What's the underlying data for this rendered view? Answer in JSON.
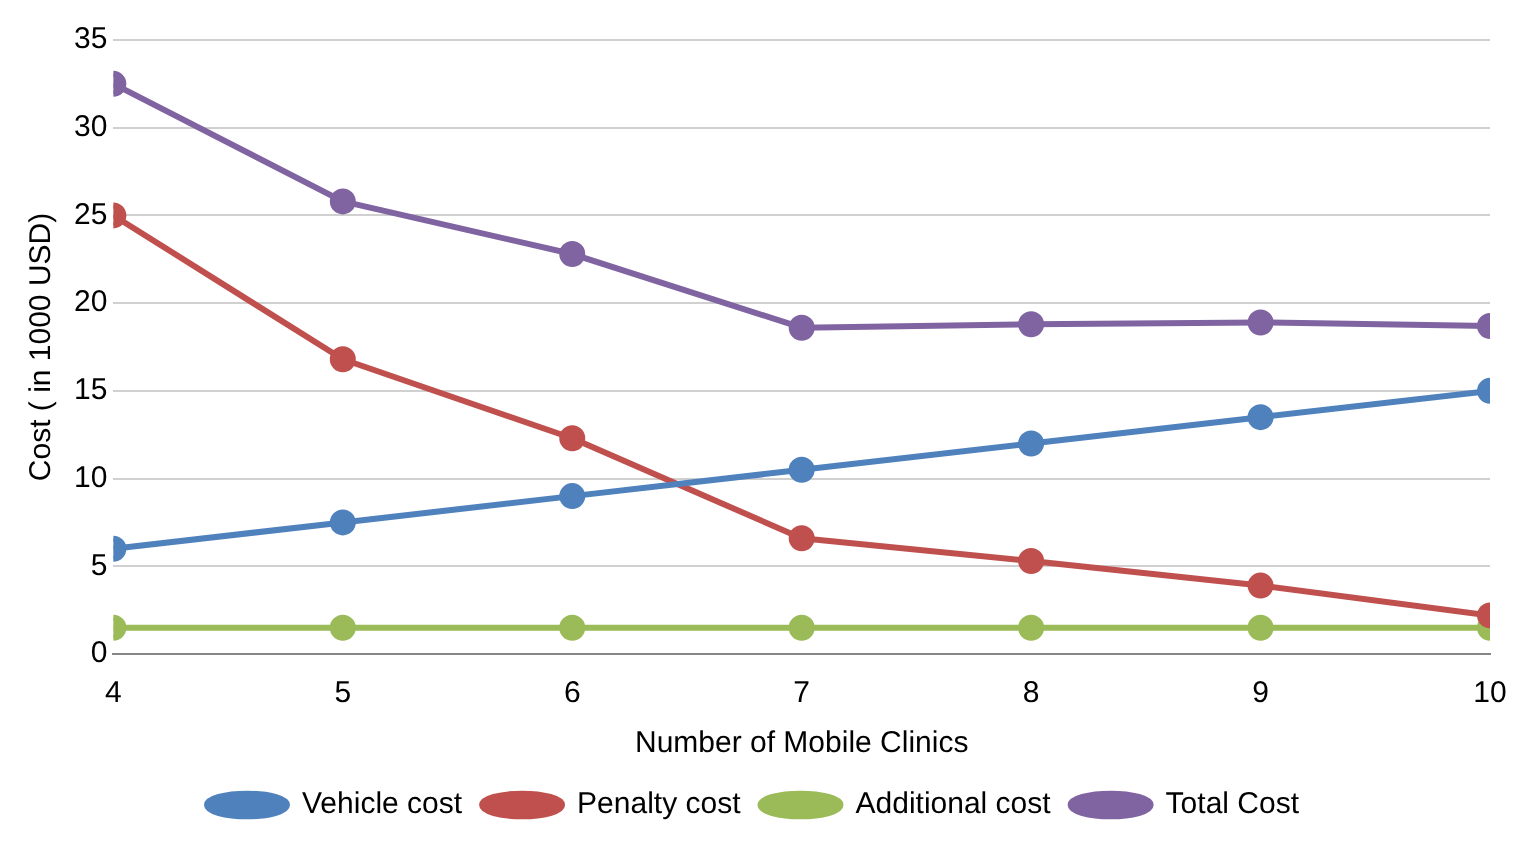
{
  "chart_data": {
    "type": "line",
    "xlabel": "Number of Mobile Clinics",
    "ylabel": "Cost ( in 1000 USD)",
    "x": [
      4,
      5,
      6,
      7,
      8,
      9,
      10
    ],
    "series": [
      {
        "name": "Vehicle cost",
        "color": "#4f81bd",
        "values": [
          6,
          7.5,
          9,
          10.5,
          12,
          13.5,
          15
        ]
      },
      {
        "name": "Penalty cost",
        "color": "#c0504d",
        "values": [
          25,
          16.8,
          12.3,
          6.6,
          5.3,
          3.9,
          2.2
        ]
      },
      {
        "name": "Additional cost",
        "color": "#9bbb59",
        "values": [
          1.5,
          1.5,
          1.5,
          1.5,
          1.5,
          1.5,
          1.5
        ]
      },
      {
        "name": "Total Cost",
        "color": "#8064a2",
        "values": [
          32.5,
          25.8,
          22.8,
          18.6,
          18.8,
          18.9,
          18.7
        ]
      }
    ],
    "xlim": [
      4,
      10
    ],
    "xticks": [
      4,
      5,
      6,
      7,
      8,
      9,
      10
    ],
    "ylim": [
      0,
      35
    ],
    "yticks": [
      0,
      5,
      10,
      15,
      20,
      25,
      30,
      35
    ],
    "grid": "y",
    "legend": "bottom",
    "marker": "circle",
    "line_style": "solid"
  }
}
